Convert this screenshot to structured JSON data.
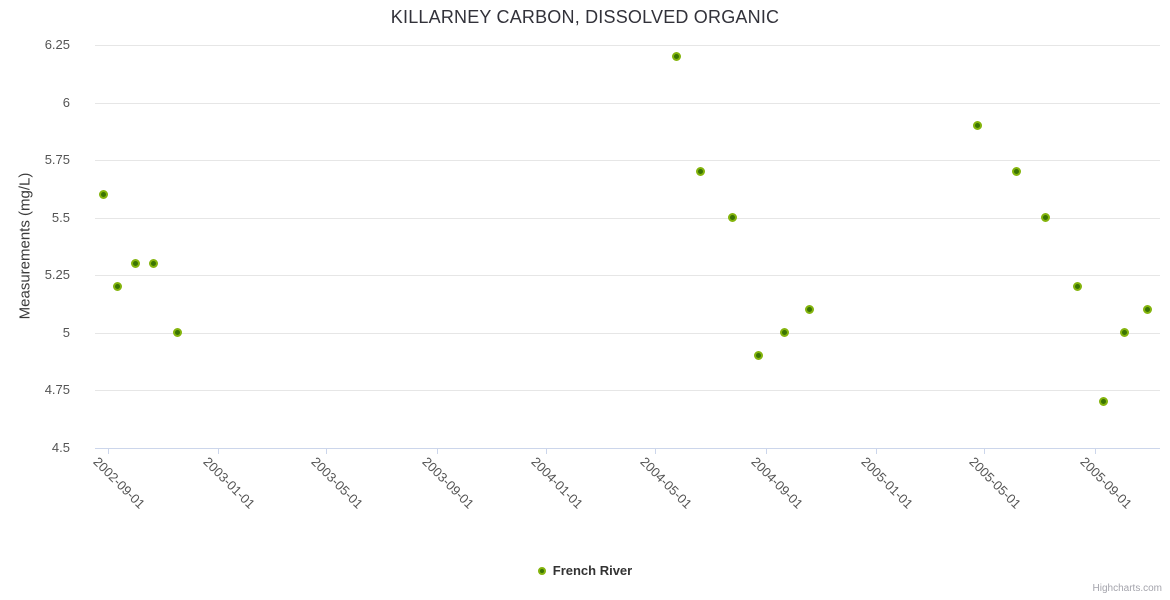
{
  "credits": {
    "label": "Highcharts.com"
  },
  "chart_data": {
    "type": "scatter",
    "title": "KILLARNEY CARBON, DISSOLVED ORGANIC",
    "xlabel": "",
    "ylabel": "Measurements (mg/L)",
    "ylim": [
      4.5,
      6.25
    ],
    "grid": "horizontal-only",
    "legend_position": "bottom-center",
    "colors": {
      "marker_ring": "#84b40d",
      "marker_core": "#3a7403",
      "gridline": "#e6e6e6",
      "axis_line": "#ccd6eb",
      "tick_label": "#545454",
      "title_text": "#32323a"
    },
    "yticks": [
      {
        "value": 4.5,
        "label": "4.5"
      },
      {
        "value": 4.75,
        "label": "4.75"
      },
      {
        "value": 5,
        "label": "5"
      },
      {
        "value": 5.25,
        "label": "5.25"
      },
      {
        "value": 5.5,
        "label": "5.5"
      },
      {
        "value": 5.75,
        "label": "5.75"
      },
      {
        "value": 6,
        "label": "6"
      },
      {
        "value": 6.25,
        "label": "6.25"
      }
    ],
    "xticks": [
      {
        "date": "2002-09-01",
        "label": "2002-09-01"
      },
      {
        "date": "2003-01-01",
        "label": "2003-01-01"
      },
      {
        "date": "2003-05-01",
        "label": "2003-05-01"
      },
      {
        "date": "2003-09-01",
        "label": "2003-09-01"
      },
      {
        "date": "2004-01-01",
        "label": "2004-01-01"
      },
      {
        "date": "2004-05-01",
        "label": "2004-05-01"
      },
      {
        "date": "2004-09-01",
        "label": "2004-09-01"
      },
      {
        "date": "2005-01-01",
        "label": "2005-01-01"
      },
      {
        "date": "2005-05-01",
        "label": "2005-05-01"
      },
      {
        "date": "2005-09-01",
        "label": "2005-09-01"
      }
    ],
    "series": [
      {
        "name": "French River",
        "points": [
          {
            "date": "2002-08-27",
            "value": 5.6
          },
          {
            "date": "2002-09-11",
            "value": 5.2
          },
          {
            "date": "2002-10-01",
            "value": 5.3
          },
          {
            "date": "2002-10-22",
            "value": 5.3
          },
          {
            "date": "2002-11-17",
            "value": 5.0
          },
          {
            "date": "2004-05-24",
            "value": 6.2
          },
          {
            "date": "2004-06-20",
            "value": 5.7
          },
          {
            "date": "2004-07-26",
            "value": 5.5
          },
          {
            "date": "2004-08-24",
            "value": 4.9
          },
          {
            "date": "2004-09-22",
            "value": 5.0
          },
          {
            "date": "2004-10-19",
            "value": 5.1
          },
          {
            "date": "2005-04-24",
            "value": 5.9
          },
          {
            "date": "2005-06-06",
            "value": 5.7
          },
          {
            "date": "2005-07-09",
            "value": 5.5
          },
          {
            "date": "2005-08-13",
            "value": 5.2
          },
          {
            "date": "2005-09-11",
            "value": 4.7
          },
          {
            "date": "2005-10-04",
            "value": 5.0
          },
          {
            "date": "2005-10-30",
            "value": 5.1
          }
        ]
      }
    ]
  }
}
